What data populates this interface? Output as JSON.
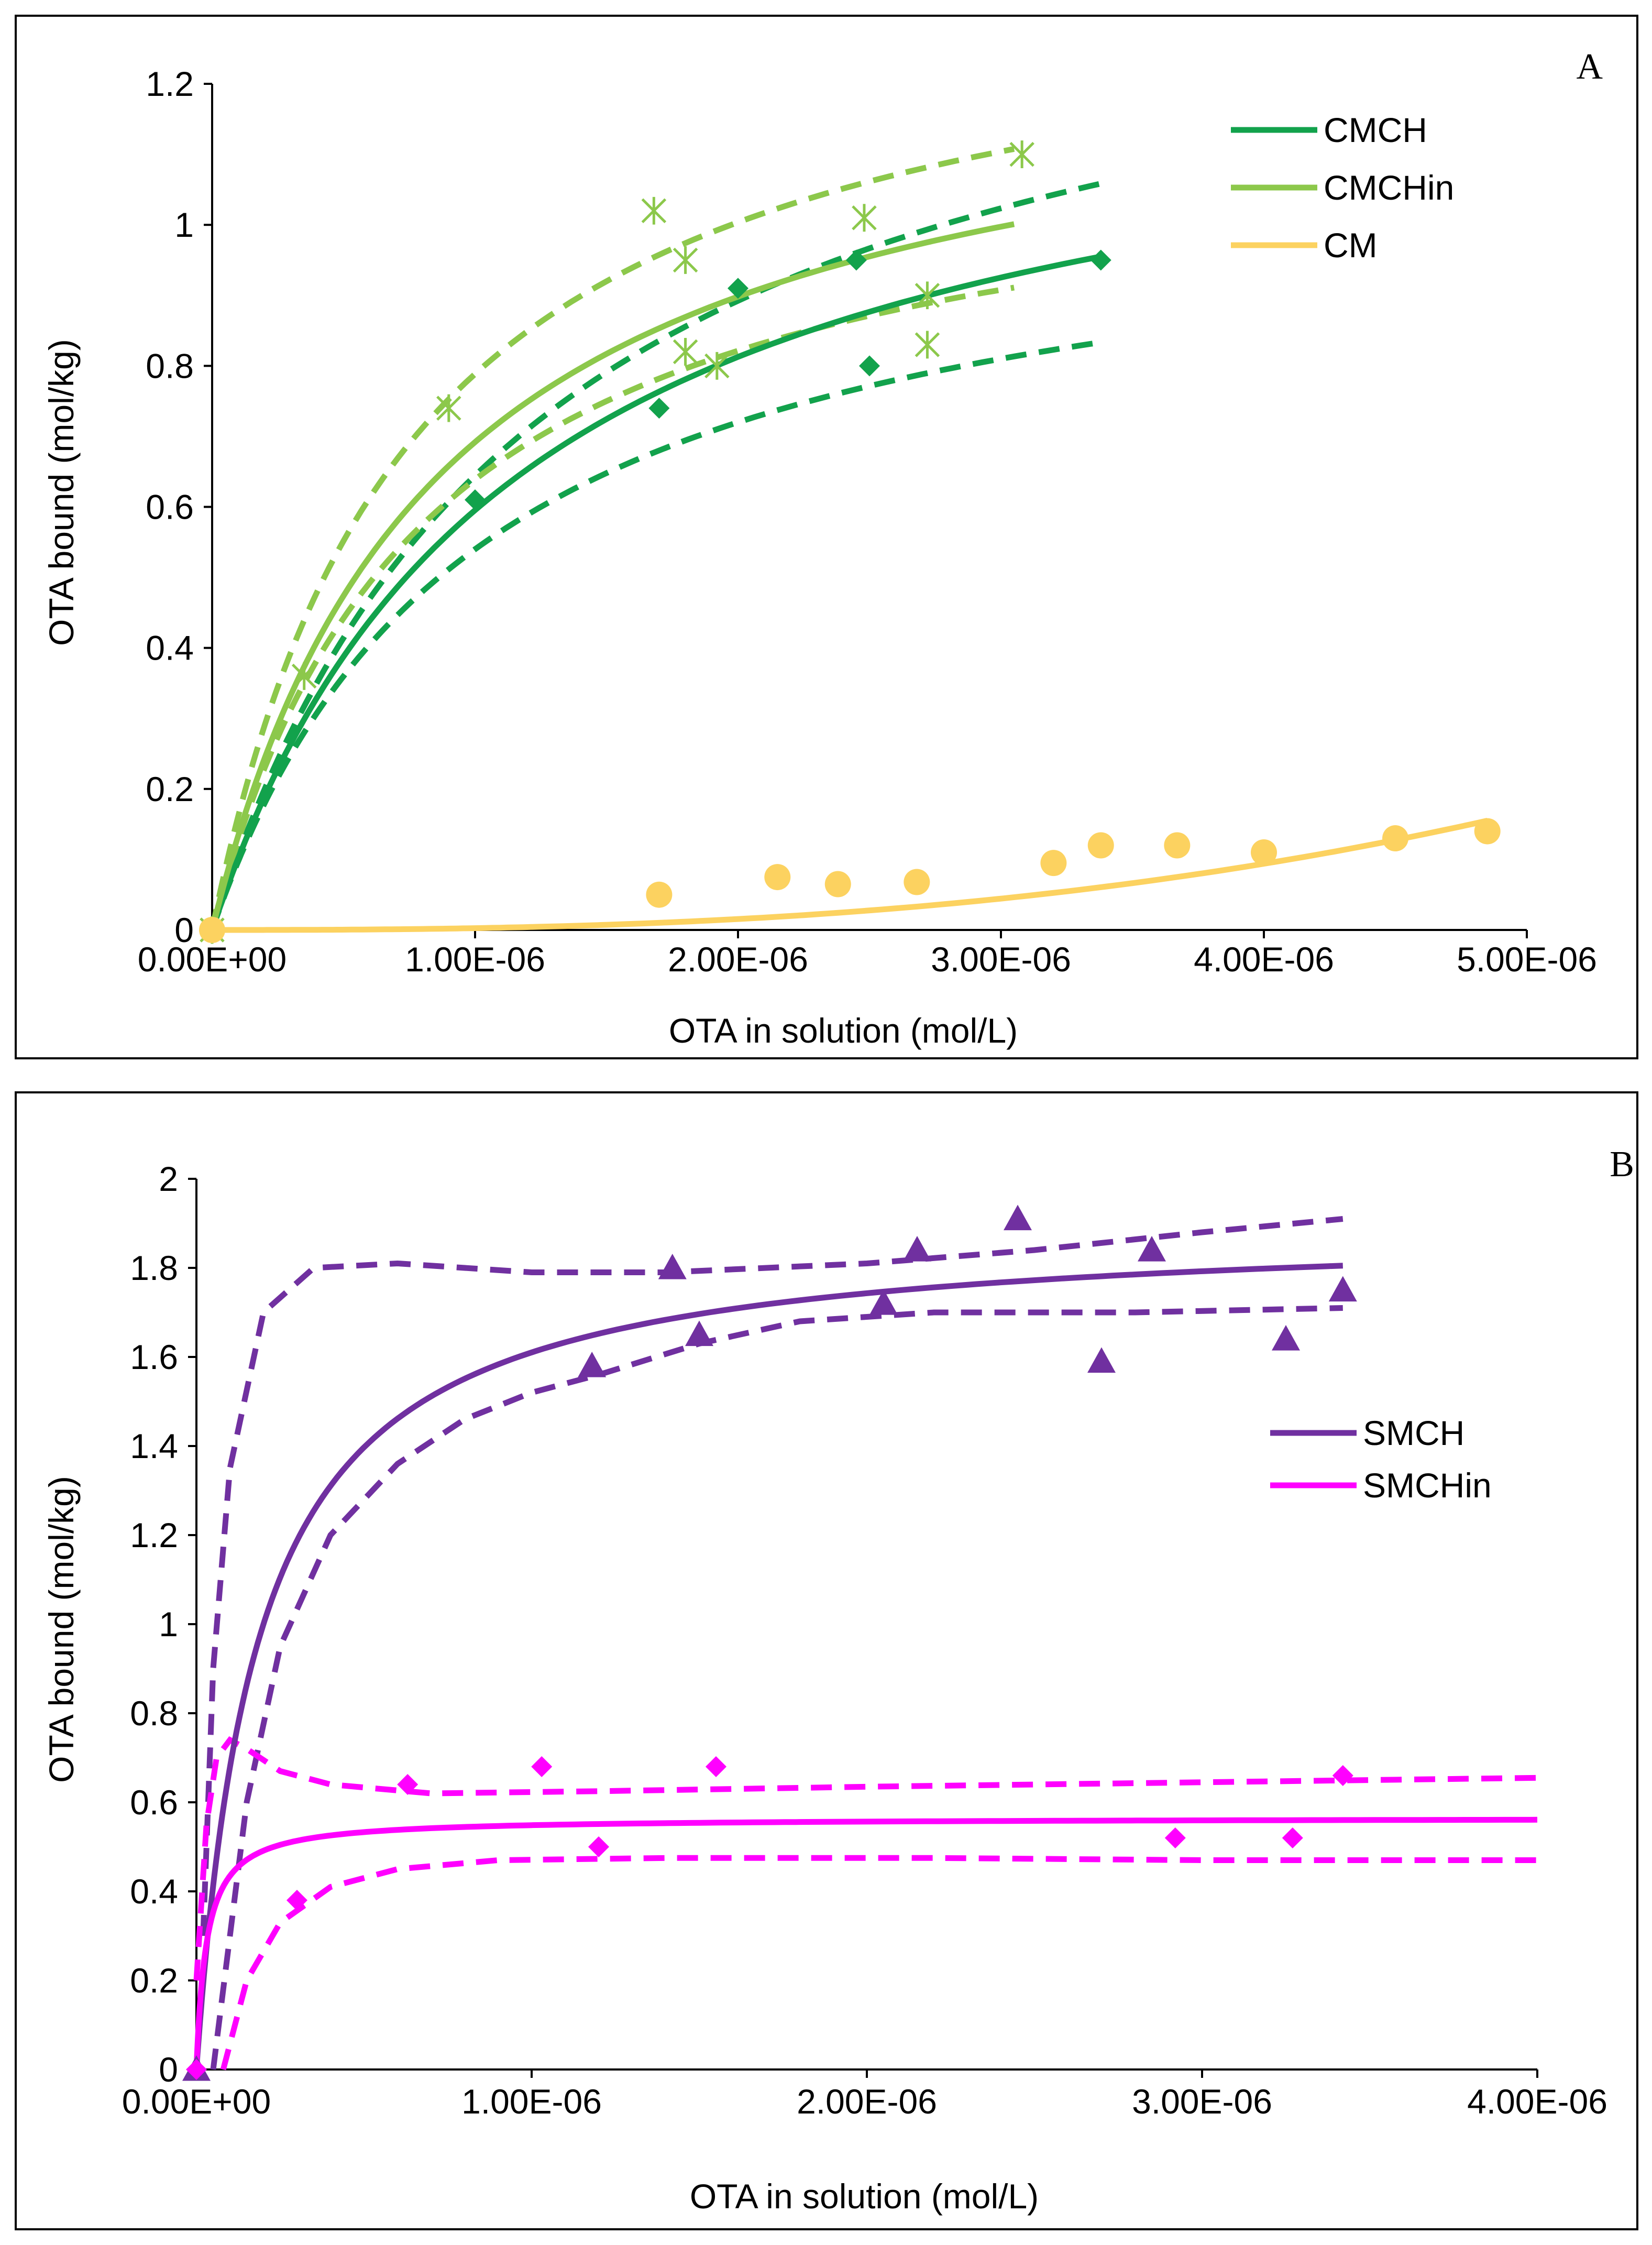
{
  "chart_data": [
    {
      "type": "scatter",
      "panel_label": "A",
      "xlabel": "OTA in solution (mol/L)",
      "ylabel": "OTA bound (mol/kg)",
      "xlim": [
        0,
        5e-06
      ],
      "ylim": [
        0,
        1.2
      ],
      "xticks": [
        0,
        1e-06,
        2e-06,
        3e-06,
        4e-06,
        5e-06
      ],
      "xtick_labels": [
        "0.00E+00",
        "1.00E-06",
        "2.00E-06",
        "3.00E-06",
        "4.00E-06",
        "5.00E-06"
      ],
      "yticks": [
        0,
        0.2,
        0.4,
        0.6,
        0.8,
        1,
        1.2
      ],
      "ytick_labels": [
        "0",
        "0.2",
        "0.4",
        "0.6",
        "0.8",
        "1",
        "1.2"
      ],
      "legend_position": "top-right",
      "series": [
        {
          "name": "CMCH",
          "color": "#12a24c",
          "marker": "diamond",
          "in_legend": true,
          "points": [
            [
              0,
              0
            ],
            [
              1e-06,
              0.61
            ],
            [
              1.7e-06,
              0.74
            ],
            [
              2e-06,
              0.91
            ],
            [
              2.45e-06,
              0.95
            ],
            [
              2.5e-06,
              0.8
            ],
            [
              3.38e-06,
              0.95
            ]
          ],
          "fit": {
            "model": "langmuir",
            "qmax": 1.28,
            "k": 1.15e-06,
            "x0": 0,
            "x1": 3.38e-06
          },
          "bands": [
            {
              "model": "langmuir",
              "qmax": 1.45,
              "k": 1.25e-06,
              "x0": 0,
              "x1": 3.38e-06
            },
            {
              "model": "langmuir",
              "qmax": 1.08,
              "k": 1e-06,
              "x0": 0,
              "x1": 3.38e-06
            }
          ]
        },
        {
          "name": "CMCHin",
          "color": "#8cc84b",
          "marker": "asterisk",
          "in_legend": true,
          "points": [
            [
              0,
              0
            ],
            [
              3.5e-07,
              0.36
            ],
            [
              9e-07,
              0.74
            ],
            [
              1.68e-06,
              1.02
            ],
            [
              1.8e-06,
              0.82
            ],
            [
              1.8e-06,
              0.95
            ],
            [
              1.92e-06,
              0.8
            ],
            [
              2.48e-06,
              1.01
            ],
            [
              2.72e-06,
              0.83
            ],
            [
              2.72e-06,
              0.9
            ],
            [
              3.08e-06,
              1.1
            ]
          ],
          "fit": {
            "model": "langmuir",
            "qmax": 1.28,
            "k": 8.5e-07,
            "x0": 0,
            "x1": 3.05e-06
          },
          "bands": [
            {
              "model": "langmuir",
              "qmax": 1.38,
              "k": 7.5e-07,
              "x0": 0,
              "x1": 3.05e-06
            },
            {
              "model": "langmuir",
              "qmax": 1.15,
              "k": 8e-07,
              "x0": 0,
              "x1": 3.05e-06
            }
          ]
        },
        {
          "name": "CM",
          "color": "#fcd260",
          "marker": "circle",
          "in_legend": true,
          "points": [
            [
              0,
              0
            ],
            [
              1.7e-06,
              0.05
            ],
            [
              2.15e-06,
              0.075
            ],
            [
              2.38e-06,
              0.065
            ],
            [
              2.68e-06,
              0.068
            ],
            [
              3.2e-06,
              0.095
            ],
            [
              3.38e-06,
              0.12
            ],
            [
              3.67e-06,
              0.12
            ],
            [
              4e-06,
              0.11
            ],
            [
              4.5e-06,
              0.13
            ],
            [
              4.85e-06,
              0.14
            ]
          ],
          "fit": {
            "model": "power",
            "a": 0.155,
            "xref": 4.85e-06,
            "n": 2.6,
            "x0": 0,
            "x1": 4.85e-06
          },
          "bands": []
        }
      ]
    },
    {
      "type": "scatter",
      "panel_label": "B",
      "xlabel": "OTA in solution (mol/L)",
      "ylabel": "OTA bound (mol/kg)",
      "xlim": [
        0,
        4e-06
      ],
      "ylim": [
        0,
        2
      ],
      "xticks": [
        0,
        1e-06,
        2e-06,
        3e-06,
        4e-06
      ],
      "xtick_labels": [
        "0.00E+00",
        "1.00E-06",
        "2.00E-06",
        "3.00E-06",
        "4.00E-06"
      ],
      "yticks": [
        0,
        0.2,
        0.4,
        0.6,
        0.8,
        1,
        1.2,
        1.4,
        1.6,
        1.8,
        2
      ],
      "ytick_labels": [
        "0",
        "0.2",
        "0.4",
        "0.6",
        "0.8",
        "1",
        "1.2",
        "1.4",
        "1.6",
        "1.8",
        "2"
      ],
      "legend_position": "right",
      "series": [
        {
          "name": "SMCH",
          "color": "#7030a0",
          "marker": "triangle",
          "in_legend": true,
          "points": [
            [
              0,
              0
            ],
            [
              1.18e-06,
              1.58
            ],
            [
              1.42e-06,
              1.8
            ],
            [
              1.5e-06,
              1.65
            ],
            [
              2.05e-06,
              1.72
            ],
            [
              2.15e-06,
              1.84
            ],
            [
              2.45e-06,
              1.91
            ],
            [
              2.7e-06,
              1.59
            ],
            [
              2.85e-06,
              1.84
            ],
            [
              3.25e-06,
              1.64
            ],
            [
              3.42e-06,
              1.75
            ]
          ],
          "fit": {
            "model": "langmuir",
            "qmax": 1.9,
            "k": 1.8e-07,
            "x0": 0,
            "x1": 3.42e-06
          },
          "bands": [
            {
              "model": "curve",
              "points": [
                [
                  2e-08,
                  0.3
                ],
                [
                  5e-08,
                  0.9
                ],
                [
                  1e-07,
                  1.35
                ],
                [
                  2e-07,
                  1.7
                ],
                [
                  3.5e-07,
                  1.8
                ],
                [
                  6e-07,
                  1.81
                ],
                [
                  1e-06,
                  1.79
                ],
                [
                  1.4e-06,
                  1.79
                ],
                [
                  2e-06,
                  1.81
                ],
                [
                  2.5e-06,
                  1.84
                ],
                [
                  3e-06,
                  1.88
                ],
                [
                  3.42e-06,
                  1.91
                ]
              ]
            },
            {
              "model": "curve",
              "points": [
                [
                  5e-08,
                  0
                ],
                [
                  1.5e-07,
                  0.6
                ],
                [
                  2.5e-07,
                  0.95
                ],
                [
                  4e-07,
                  1.2
                ],
                [
                  6e-07,
                  1.36
                ],
                [
                  8e-07,
                  1.46
                ],
                [
                  1e-06,
                  1.52
                ],
                [
                  1.2e-06,
                  1.56
                ],
                [
                  1.5e-06,
                  1.63
                ],
                [
                  1.8e-06,
                  1.68
                ],
                [
                  2.2e-06,
                  1.7
                ],
                [
                  2.8e-06,
                  1.7
                ],
                [
                  3.42e-06,
                  1.71
                ]
              ]
            }
          ]
        },
        {
          "name": "SMCHin",
          "color": "#ff00ff",
          "marker": "diamond",
          "in_legend": true,
          "points": [
            [
              0,
              0
            ],
            [
              3e-07,
              0.38
            ],
            [
              6.3e-07,
              0.64
            ],
            [
              1.03e-06,
              0.68
            ],
            [
              1.2e-06,
              0.5
            ],
            [
              1.55e-06,
              0.68
            ],
            [
              2.92e-06,
              0.52
            ],
            [
              3.27e-06,
              0.52
            ],
            [
              3.42e-06,
              0.66
            ]
          ],
          "fit": {
            "model": "langmuir",
            "qmax": 0.565,
            "k": 3e-08,
            "x0": 0,
            "x1": 4e-06
          },
          "bands": [
            {
              "model": "curve",
              "points": [
                [
                  0,
                  0.2
                ],
                [
                  3e-08,
                  0.55
                ],
                [
                  6e-08,
                  0.7
                ],
                [
                  1e-07,
                  0.74
                ],
                [
                  1.5e-07,
                  0.72
                ],
                [
                  2.5e-07,
                  0.67
                ],
                [
                  4e-07,
                  0.64
                ],
                [
                  7e-07,
                  0.62
                ],
                [
                  1.2e-06,
                  0.625
                ],
                [
                  2e-06,
                  0.635
                ],
                [
                  3e-06,
                  0.645
                ],
                [
                  4e-06,
                  0.655
                ]
              ]
            },
            {
              "model": "curve",
              "points": [
                [
                  8e-08,
                  0
                ],
                [
                  1.5e-07,
                  0.2
                ],
                [
                  2.5e-07,
                  0.33
                ],
                [
                  4e-07,
                  0.41
                ],
                [
                  6e-07,
                  0.45
                ],
                [
                  9e-07,
                  0.47
                ],
                [
                  1.4e-06,
                  0.475
                ],
                [
                  2.2e-06,
                  0.475
                ],
                [
                  3e-06,
                  0.47
                ],
                [
                  4e-06,
                  0.47
                ]
              ]
            }
          ]
        }
      ]
    }
  ]
}
